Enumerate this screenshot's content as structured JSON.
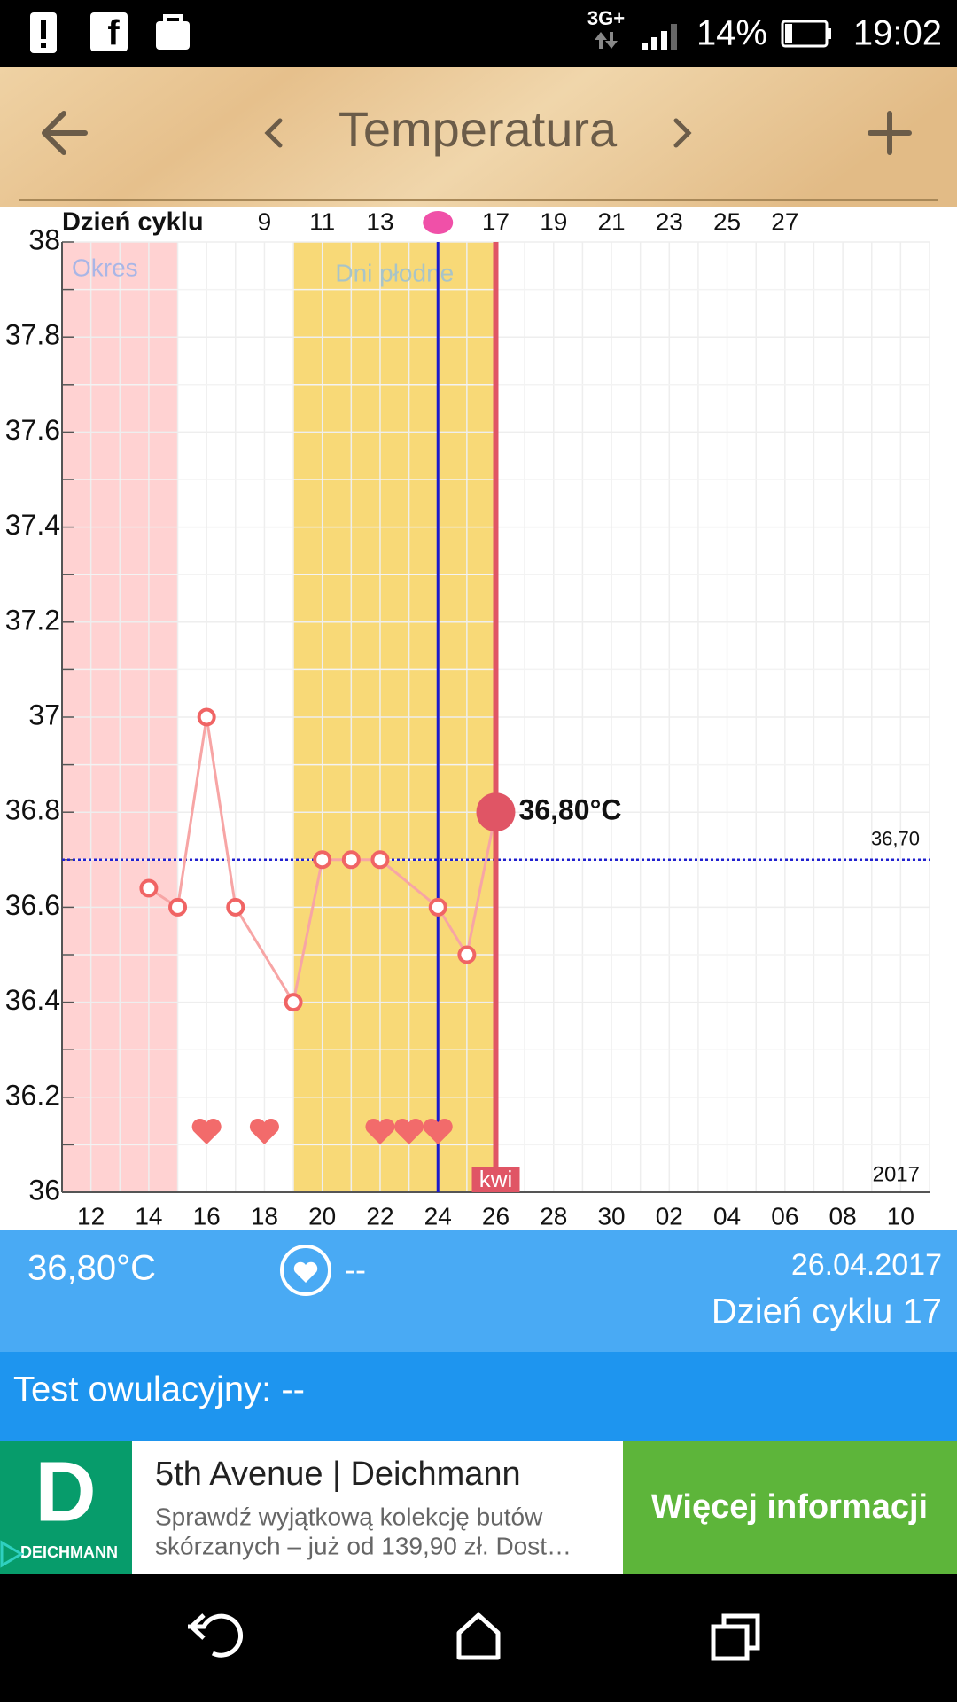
{
  "status_bar": {
    "network": "3G+",
    "battery": "14%",
    "time": "19:02"
  },
  "header": {
    "title": "Temperatura"
  },
  "chart_data": {
    "type": "line",
    "x2_label": "Dzień cyklu",
    "x": [
      14,
      15,
      16,
      17,
      19,
      20,
      21,
      22,
      24,
      25,
      26
    ],
    "values": [
      36.64,
      36.6,
      37.0,
      36.6,
      36.4,
      36.7,
      36.7,
      36.7,
      36.6,
      36.5,
      36.8
    ],
    "value_labels": [
      null,
      null,
      null,
      null,
      null,
      null,
      null,
      null,
      null,
      null,
      "36,80°C"
    ],
    "color": "#f7a5a5",
    "marker_color": "#f06464",
    "current_color": "#e05565",
    "xlim": [
      11,
      41
    ],
    "xticks": [
      12,
      14,
      16,
      18,
      20,
      22,
      24,
      26,
      28,
      30,
      {
        "value": 32,
        "label": "02"
      },
      {
        "value": 34,
        "label": "04"
      },
      {
        "value": 36,
        "label": "06"
      },
      {
        "value": 38,
        "label": "08"
      },
      {
        "value": 40,
        "label": "10"
      }
    ],
    "x2lim": [
      2,
      32
    ],
    "x2ticks": [
      9,
      11,
      13,
      17,
      19,
      21,
      23,
      25,
      27
    ],
    "ylim": [
      36,
      38
    ],
    "yticks": [
      36,
      36.2,
      36.4,
      36.6,
      36.8,
      37,
      37.2,
      37.4,
      37.6,
      37.8,
      38
    ],
    "grid": true,
    "bands": [
      {
        "label": "Okres",
        "from": 11,
        "to": 15,
        "color": "#ffd2d2",
        "label_color": "#a9b6e6"
      },
      {
        "label": "Dni płodne",
        "from": 19,
        "to": 26,
        "color": "#f8d977",
        "label_color": "#a8c4c8"
      }
    ],
    "ovulation_x": 24,
    "today_x": 26,
    "coverline": {
      "value": 36.7,
      "label": "36,70"
    },
    "month_label": "kwi",
    "year_label": "2017",
    "hearts_x": [
      16,
      18,
      22,
      23,
      24
    ]
  },
  "info": {
    "temperature": "36,80°C",
    "intercourse": "--",
    "date": "26.04.2017",
    "cycle_day": "Dzień cyklu 17"
  },
  "ovulation_test": "Test owulacyjny: --",
  "ad": {
    "logo": "D",
    "brand": "DEICHMANN",
    "title": "5th Avenue | Deichmann",
    "description": [
      "Sprawdź wyjątkową kolekcję butów",
      "skórzanych – już od 139,90 zł. Dost…"
    ],
    "button": "Więcej informacji"
  }
}
